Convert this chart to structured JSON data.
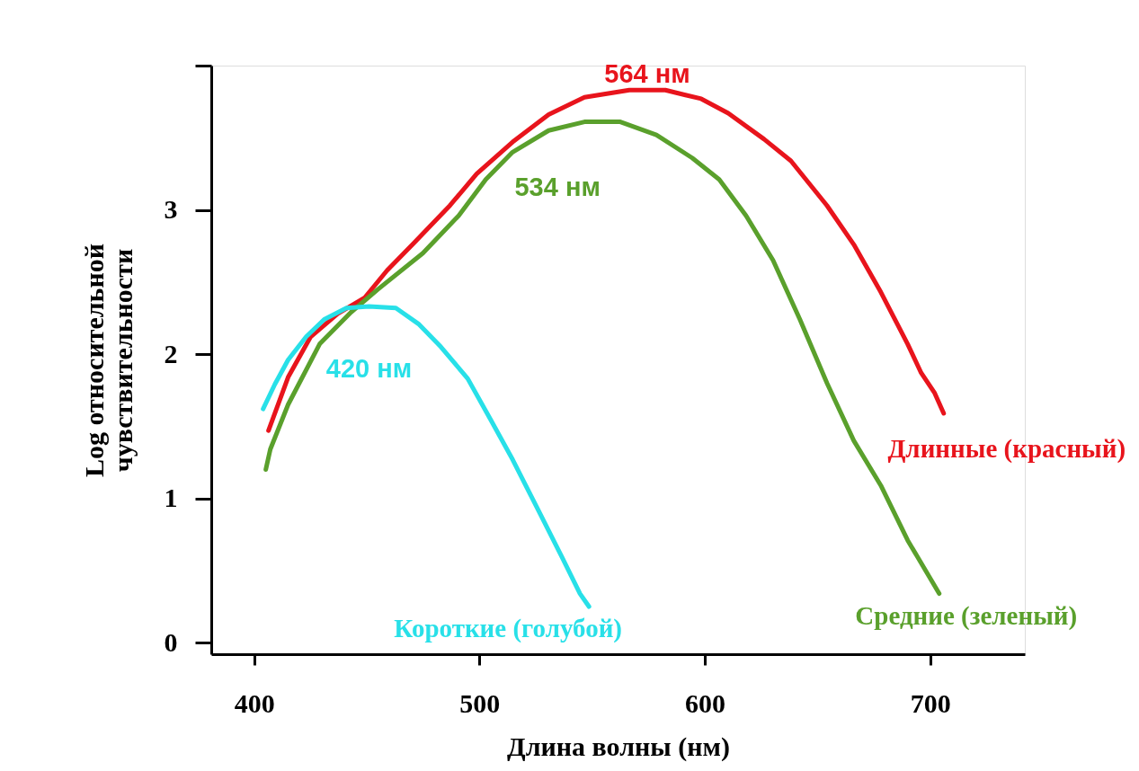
{
  "chart_data": {
    "type": "line",
    "xlabel": "Длина волны (нм)",
    "ylabel": "Log  относительной чувствительности",
    "xlim": [
      381,
      742
    ],
    "xticks": [
      400,
      500,
      600,
      700
    ],
    "ylim": [
      -0.08,
      4
    ],
    "yticks": [
      0,
      1,
      2,
      3,
      {
        "value": 4,
        "label": null
      }
    ],
    "grid": false,
    "marker": "none",
    "line_style": "solid",
    "series": [
      {
        "name": "Длинные (красный)",
        "color": "#e8141c",
        "x": [
          406.4,
          415.1,
          425.1,
          437.1,
          449.0,
          459.0,
          470.9,
          486.9,
          498.8,
          514.7,
          530.7,
          546.6,
          566.5,
          582.5,
          598.4,
          610.4,
          626.3,
          638.2,
          654.2,
          666.1,
          678.1,
          690.0,
          696.0,
          702.0,
          706.0
        ],
        "values": [
          1.47,
          1.84,
          2.12,
          2.28,
          2.39,
          2.58,
          2.77,
          3.03,
          3.25,
          3.47,
          3.66,
          3.78,
          3.83,
          3.83,
          3.77,
          3.67,
          3.49,
          3.34,
          3.03,
          2.76,
          2.43,
          2.07,
          1.87,
          1.73,
          1.59
        ]
      },
      {
        "name": "Средние (зеленый)",
        "color": "#5aa02c",
        "x": [
          405.2,
          407.2,
          415.1,
          429.1,
          443.0,
          455.0,
          474.9,
          490.8,
          502.8,
          514.7,
          530.7,
          546.6,
          562.5,
          578.5,
          594.4,
          606.4,
          618.3,
          630.3,
          642.2,
          654.2,
          666.1,
          678.1,
          690.0,
          704.0
        ],
        "values": [
          1.2,
          1.34,
          1.65,
          2.07,
          2.29,
          2.45,
          2.7,
          2.96,
          3.21,
          3.4,
          3.55,
          3.61,
          3.61,
          3.52,
          3.36,
          3.21,
          2.96,
          2.65,
          2.24,
          1.8,
          1.4,
          1.09,
          0.71,
          0.34
        ]
      },
      {
        "name": "Короткие (голубой)",
        "color": "#28e0e8",
        "x": [
          404.0,
          409.2,
          415.1,
          423.1,
          431.1,
          441.0,
          451.0,
          462.9,
          472.9,
          482.9,
          494.8,
          504.8,
          514.7,
          526.7,
          536.7,
          544.6,
          548.6
        ],
        "values": [
          1.62,
          1.79,
          1.96,
          2.12,
          2.24,
          2.32,
          2.33,
          2.32,
          2.21,
          2.05,
          1.83,
          1.55,
          1.27,
          0.9,
          0.59,
          0.34,
          0.25
        ]
      }
    ],
    "annotations": [
      "564 нм",
      "534 нм",
      "420 нм"
    ]
  }
}
